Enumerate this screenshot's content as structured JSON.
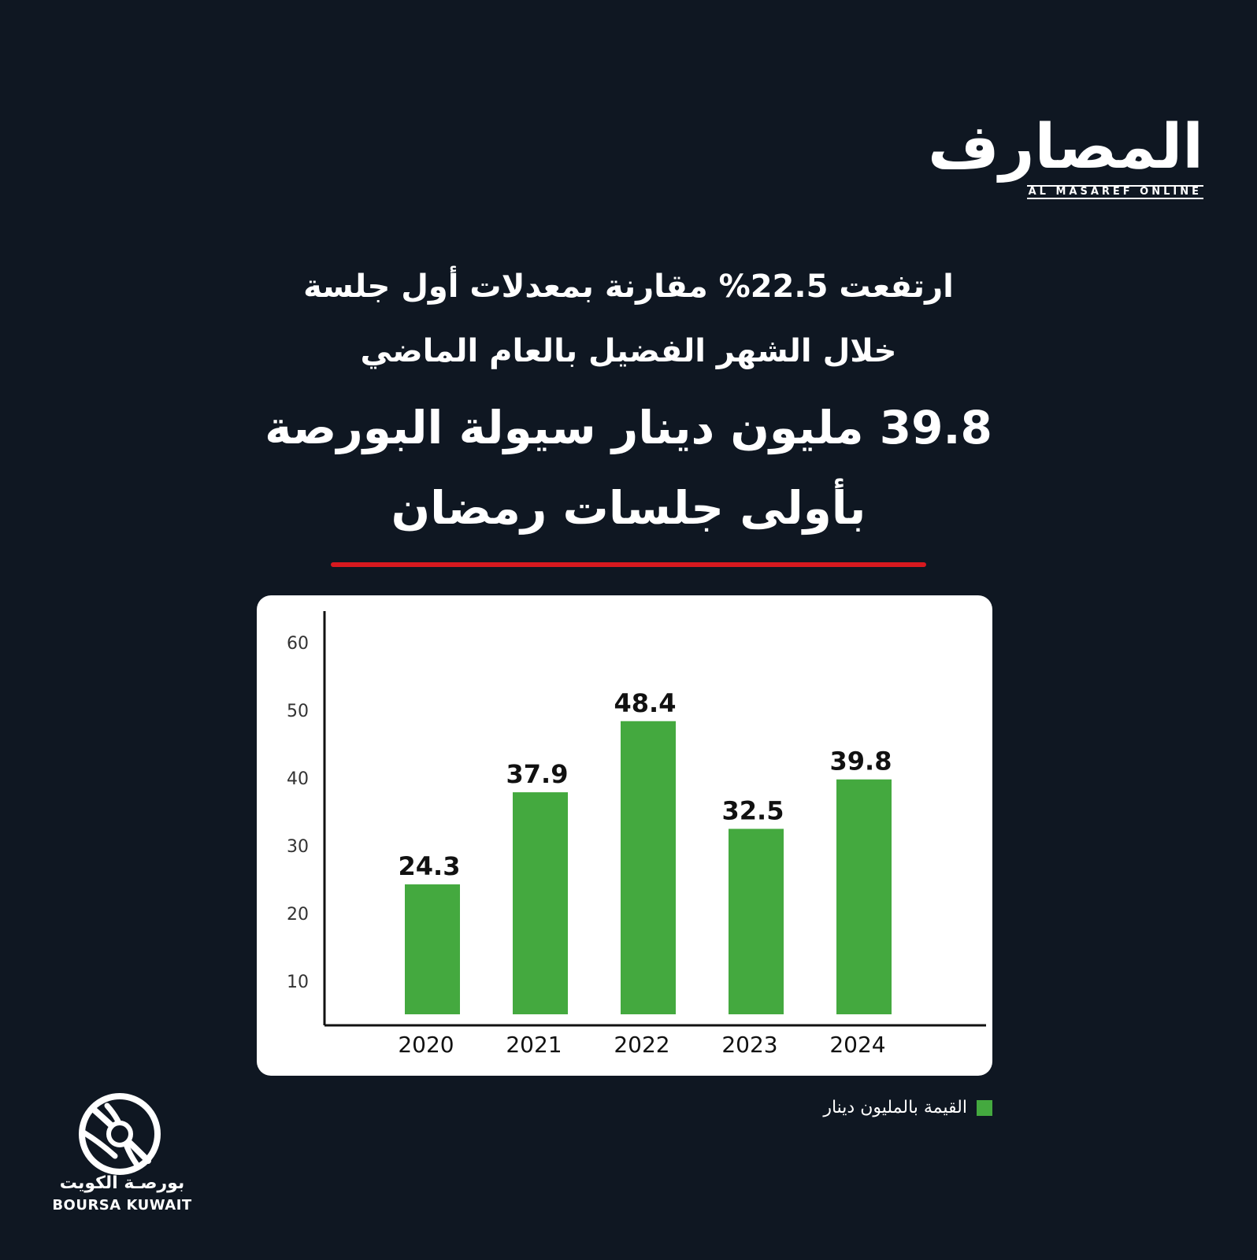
{
  "brand": {
    "logo_ar": "المصارف",
    "logo_en": "AL MASAREF ONLINE"
  },
  "headline": {
    "sub_line1": "ارتفعت 22.5% مقارنة بمعدلات أول جلسة",
    "sub_line2": "خلال الشهر الفضيل بالعام الماضي",
    "main_line1": "39.8 مليون دينار سيولة البورصة",
    "main_line2": "بأولى جلسات رمضان"
  },
  "legend": {
    "label": "القيمة بالمليون دينار",
    "color": "#44a93f"
  },
  "footer": {
    "boursa_ar": "بورصـة الكويت",
    "boursa_en": "BOURSA KUWAIT"
  },
  "colors": {
    "background": "#0f1722",
    "accent_red": "#d7191f",
    "bar_green": "#44a93f"
  },
  "chart_data": {
    "type": "bar",
    "categories": [
      "2020",
      "2021",
      "2022",
      "2023",
      "2024"
    ],
    "values": [
      24.3,
      37.9,
      48.4,
      32.5,
      39.8
    ],
    "data_labels": [
      "24.3",
      "37.9",
      "48.4",
      "32.5",
      "39.8"
    ],
    "yticks": [
      10,
      20,
      30,
      40,
      50,
      60
    ],
    "ylim": [
      0,
      60
    ],
    "grid": false,
    "legend_position": "bottom-right",
    "title": "",
    "xlabel": "",
    "ylabel": ""
  }
}
